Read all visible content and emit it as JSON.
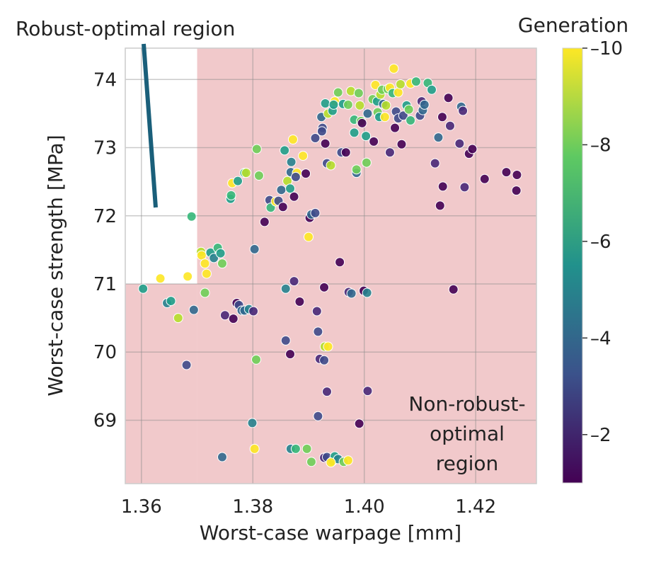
{
  "chart_data": {
    "type": "scatter",
    "xlabel": "Worst-case warpage [mm]",
    "ylabel": "Worst-case strength [MPa]",
    "xlim": [
      1.3571,
      1.4309
    ],
    "ylim": [
      68.07,
      74.46
    ],
    "xticks": [
      1.36,
      1.38,
      1.4,
      1.42
    ],
    "xtick_labels": [
      "1.36",
      "1.38",
      "1.40",
      "1.42"
    ],
    "yticks": [
      69,
      70,
      71,
      72,
      73,
      74
    ],
    "ytick_labels": [
      "69",
      "70",
      "71",
      "72",
      "73",
      "74"
    ],
    "grid": true,
    "colorbar": {
      "title": "Generation",
      "colormap": "viridis",
      "range": [
        1,
        10
      ],
      "ticks": [
        2,
        4,
        6,
        8,
        10
      ],
      "tick_labels": [
        "2",
        "4",
        "6",
        "8",
        "10"
      ]
    },
    "regions": {
      "robust_boundary": {
        "x": 1.37,
        "y": 71
      },
      "non_robust_color": "#f1c9cb"
    },
    "annotations": {
      "robust": "Robust-optimal region",
      "non_robust": [
        "Non-robust-",
        "optimal",
        "region"
      ],
      "arrow_color": "#1a5f7a"
    },
    "points_columns": [
      "warpage",
      "strength",
      "generation"
    ],
    "points": [
      [
        1.3603,
        70.93,
        6
      ],
      [
        1.3634,
        71.08,
        10
      ],
      [
        1.3683,
        71.11,
        10
      ],
      [
        1.369,
        71.99,
        7
      ],
      [
        1.3646,
        70.72,
        5
      ],
      [
        1.3653,
        70.75,
        6
      ],
      [
        1.3666,
        70.5,
        9
      ],
      [
        1.3681,
        69.81,
        3
      ],
      [
        1.3694,
        70.62,
        4
      ],
      [
        1.3707,
        71.47,
        9
      ],
      [
        1.3708,
        71.42,
        10
      ],
      [
        1.3714,
        71.3,
        10
      ],
      [
        1.3717,
        71.15,
        10
      ],
      [
        1.3714,
        70.87,
        8
      ],
      [
        1.3724,
        71.46,
        6
      ],
      [
        1.373,
        71.38,
        5
      ],
      [
        1.3737,
        71.53,
        7
      ],
      [
        1.3742,
        71.45,
        6
      ],
      [
        1.3745,
        71.3,
        8
      ],
      [
        1.376,
        72.25,
        6
      ],
      [
        1.3761,
        72.3,
        7
      ],
      [
        1.3763,
        72.48,
        10
      ],
      [
        1.3773,
        72.51,
        6
      ],
      [
        1.3785,
        72.63,
        7
      ],
      [
        1.3788,
        72.63,
        9
      ],
      [
        1.3807,
        72.98,
        8
      ],
      [
        1.3811,
        72.59,
        8
      ],
      [
        1.3821,
        71.91,
        1
      ],
      [
        1.383,
        72.23,
        3
      ],
      [
        1.3832,
        72.12,
        7
      ],
      [
        1.3841,
        72.21,
        10
      ],
      [
        1.3846,
        72.22,
        3
      ],
      [
        1.3854,
        72.13,
        1
      ],
      [
        1.3851,
        72.38,
        4
      ],
      [
        1.3857,
        72.96,
        6
      ],
      [
        1.3862,
        72.51,
        9
      ],
      [
        1.3867,
        72.4,
        6
      ],
      [
        1.3868,
        72.64,
        4
      ],
      [
        1.3879,
        72.63,
        10
      ],
      [
        1.3869,
        72.79,
        5
      ],
      [
        1.3872,
        73.12,
        10
      ],
      [
        1.3874,
        72.28,
        1
      ],
      [
        1.3877,
        72.57,
        3
      ],
      [
        1.389,
        72.88,
        10
      ],
      [
        1.3895,
        72.62,
        1
      ],
      [
        1.39,
        71.69,
        10
      ],
      [
        1.3902,
        71.97,
        1
      ],
      [
        1.3905,
        72.02,
        4
      ],
      [
        1.3912,
        72.04,
        3
      ],
      [
        1.3912,
        73.14,
        3
      ],
      [
        1.3925,
        73.29,
        3
      ],
      [
        1.3923,
        73.45,
        4
      ],
      [
        1.3924,
        73.24,
        3
      ],
      [
        1.393,
        73.65,
        6
      ],
      [
        1.393,
        73.06,
        1
      ],
      [
        1.3933,
        72.77,
        3
      ],
      [
        1.394,
        72.74,
        9
      ],
      [
        1.3935,
        73.5,
        9
      ],
      [
        1.3943,
        73.54,
        6
      ],
      [
        1.3947,
        73.68,
        10
      ],
      [
        1.3953,
        73.81,
        8
      ],
      [
        1.3945,
        73.63,
        6
      ],
      [
        1.3959,
        72.93,
        3
      ],
      [
        1.3962,
        73.64,
        6
      ],
      [
        1.3967,
        72.93,
        1
      ],
      [
        1.3971,
        73.63,
        8
      ],
      [
        1.3976,
        73.83,
        9
      ],
      [
        1.3982,
        73.41,
        7
      ],
      [
        1.3982,
        73.22,
        6
      ],
      [
        1.3986,
        72.63,
        4
      ],
      [
        1.3986,
        72.68,
        8
      ],
      [
        1.399,
        73.8,
        8
      ],
      [
        1.3992,
        73.62,
        9
      ],
      [
        1.3994,
        73.39,
        8
      ],
      [
        1.3996,
        73.36,
        1
      ],
      [
        1.4003,
        73.17,
        6
      ],
      [
        1.4004,
        72.78,
        8
      ],
      [
        1.4006,
        73.5,
        4
      ],
      [
        1.4015,
        73.71,
        8
      ],
      [
        1.4017,
        73.09,
        1
      ],
      [
        1.402,
        73.92,
        10
      ],
      [
        1.4023,
        73.68,
        6
      ],
      [
        1.4024,
        73.52,
        8
      ],
      [
        1.4027,
        73.45,
        6
      ],
      [
        1.4029,
        73.78,
        9
      ],
      [
        1.4032,
        73.85,
        8
      ],
      [
        1.4034,
        73.64,
        4
      ],
      [
        1.4037,
        73.45,
        10
      ],
      [
        1.4039,
        73.62,
        9
      ],
      [
        1.4042,
        73.86,
        8
      ],
      [
        1.4046,
        72.93,
        2
      ],
      [
        1.4046,
        73.88,
        10
      ],
      [
        1.4053,
        74.16,
        10
      ],
      [
        1.4051,
        73.8,
        7
      ],
      [
        1.4055,
        73.29,
        1
      ],
      [
        1.4057,
        73.53,
        3
      ],
      [
        1.4061,
        73.43,
        3
      ],
      [
        1.4061,
        73.81,
        10
      ],
      [
        1.4065,
        73.93,
        9
      ],
      [
        1.4067,
        73.05,
        1
      ],
      [
        1.407,
        73.47,
        3
      ],
      [
        1.4076,
        73.62,
        6
      ],
      [
        1.408,
        73.56,
        8
      ],
      [
        1.4083,
        73.4,
        7
      ],
      [
        1.4083,
        73.94,
        10
      ],
      [
        1.4093,
        73.97,
        7
      ],
      [
        1.41,
        73.47,
        3
      ],
      [
        1.4103,
        73.68,
        2
      ],
      [
        1.4105,
        73.55,
        4
      ],
      [
        1.4108,
        73.63,
        4
      ],
      [
        1.4114,
        73.95,
        7
      ],
      [
        1.4121,
        73.85,
        6
      ],
      [
        1.4127,
        72.77,
        2
      ],
      [
        1.4133,
        73.15,
        4
      ],
      [
        1.4136,
        72.15,
        1
      ],
      [
        1.4141,
        72.43,
        1
      ],
      [
        1.4151,
        73.73,
        1
      ],
      [
        1.4154,
        73.32,
        2
      ],
      [
        1.416,
        70.92,
        1
      ],
      [
        1.4174,
        73.6,
        4
      ],
      [
        1.4177,
        73.54,
        2
      ],
      [
        1.418,
        72.42,
        2
      ],
      [
        1.4188,
        72.91,
        1
      ],
      [
        1.4194,
        72.98,
        1
      ],
      [
        1.4216,
        72.54,
        1
      ],
      [
        1.4255,
        72.64,
        1
      ],
      [
        1.4274,
        72.6,
        1
      ],
      [
        1.4273,
        72.37,
        1
      ],
      [
        1.4171,
        73.06,
        2
      ],
      [
        1.414,
        73.45,
        1
      ],
      [
        1.3803,
        71.51,
        4
      ],
      [
        1.3771,
        70.72,
        1
      ],
      [
        1.3775,
        70.69,
        3
      ],
      [
        1.378,
        70.61,
        4
      ],
      [
        1.3785,
        70.61,
        4
      ],
      [
        1.3793,
        70.63,
        5
      ],
      [
        1.3801,
        70.6,
        2
      ],
      [
        1.375,
        70.54,
        2
      ],
      [
        1.3765,
        70.49,
        1
      ],
      [
        1.3806,
        69.89,
        8
      ],
      [
        1.3859,
        70.93,
        5
      ],
      [
        1.3874,
        71.04,
        2
      ],
      [
        1.3884,
        70.74,
        1
      ],
      [
        1.3859,
        70.17,
        3
      ],
      [
        1.3867,
        69.97,
        1
      ],
      [
        1.3915,
        70.6,
        2
      ],
      [
        1.3928,
        70.95,
        1
      ],
      [
        1.3917,
        70.3,
        3
      ],
      [
        1.3956,
        71.32,
        1
      ],
      [
        1.3972,
        70.88,
        2
      ],
      [
        1.3977,
        70.86,
        4
      ],
      [
        1.3999,
        70.9,
        1
      ],
      [
        1.4005,
        70.87,
        5
      ],
      [
        1.3929,
        70.08,
        9
      ],
      [
        1.3935,
        70.08,
        10
      ],
      [
        1.392,
        69.9,
        2
      ],
      [
        1.3928,
        69.88,
        3
      ],
      [
        1.3933,
        69.42,
        2
      ],
      [
        1.3917,
        69.06,
        3
      ],
      [
        1.3991,
        68.95,
        1
      ],
      [
        1.4006,
        69.43,
        2
      ],
      [
        1.3799,
        68.96,
        5
      ],
      [
        1.3745,
        68.46,
        4
      ],
      [
        1.3803,
        68.58,
        10
      ],
      [
        1.3868,
        68.58,
        5
      ],
      [
        1.3877,
        68.58,
        7
      ],
      [
        1.3897,
        68.58,
        8
      ],
      [
        1.3905,
        68.39,
        8
      ],
      [
        1.3928,
        68.45,
        2
      ],
      [
        1.3933,
        68.46,
        3
      ],
      [
        1.3943,
        68.4,
        9
      ],
      [
        1.3947,
        68.47,
        6
      ],
      [
        1.3953,
        68.43,
        5
      ],
      [
        1.3963,
        68.39,
        8
      ],
      [
        1.3971,
        68.41,
        10
      ],
      [
        1.394,
        68.38,
        10
      ]
    ]
  }
}
